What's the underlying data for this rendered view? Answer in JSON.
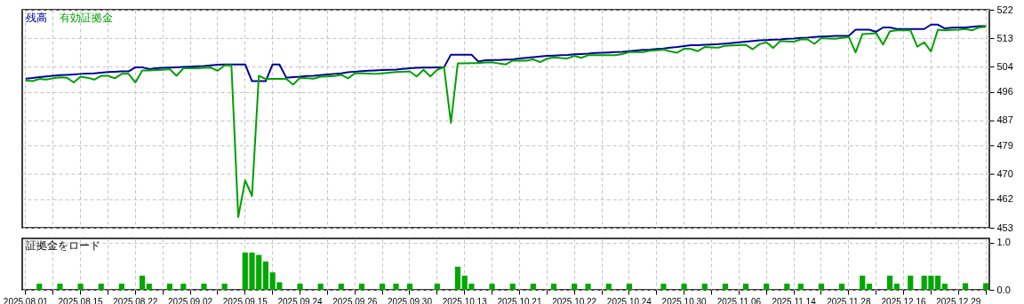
{
  "chart_data": [
    {
      "type": "line",
      "legend": "top left",
      "grid": true,
      "tick_labels": "y",
      "categories": [
        "2025.08.01",
        null,
        null,
        null,
        null,
        null,
        null,
        null,
        "2025.08.15",
        null,
        null,
        null,
        null,
        null,
        null,
        null,
        "2025.08.22",
        null,
        null,
        null,
        null,
        null,
        null,
        null,
        "2025.09.02",
        null,
        null,
        null,
        null,
        null,
        null,
        null,
        "2025.09.15",
        null,
        null,
        null,
        null,
        null,
        null,
        null,
        "2025.09.24",
        null,
        null,
        null,
        null,
        null,
        null,
        null,
        "2025.09.26",
        null,
        null,
        null,
        null,
        null,
        null,
        null,
        "2025.09.30",
        null,
        null,
        null,
        null,
        null,
        null,
        null,
        "2025.10.13",
        null,
        null,
        null,
        null,
        null,
        null,
        null,
        "2025.10.21",
        null,
        null,
        null,
        null,
        null,
        null,
        null,
        "2025.10.22",
        null,
        null,
        null,
        null,
        null,
        null,
        null,
        "2025.10.24",
        null,
        null,
        null,
        null,
        null,
        null,
        null,
        "2025.10.30",
        null,
        null,
        null,
        null,
        null,
        null,
        null,
        "2025.11.06",
        null,
        null,
        null,
        null,
        null,
        null,
        null,
        "2025.11.14",
        null,
        null,
        null,
        null,
        null,
        null,
        null,
        "2025.11.28",
        null,
        null,
        null,
        null,
        null,
        null,
        null,
        "2025.12.16",
        null,
        null,
        null,
        null,
        null,
        null,
        null,
        "2025.12.29",
        null,
        null,
        null,
        null
      ],
      "ylim": [
        453,
        522
      ],
      "yticks": [
        453,
        462,
        470,
        479,
        487,
        496,
        504,
        513,
        522
      ],
      "series": [
        {
          "name": "残高",
          "color": "#00009c",
          "values": [
            500.2,
            500.4,
            500.7,
            500.9,
            501.1,
            501.3,
            501.4,
            501.5,
            501.7,
            501.8,
            501.9,
            502.1,
            502.3,
            502.4,
            502.5,
            502.5,
            503.8,
            503.8,
            503.2,
            503.5,
            503.6,
            503.7,
            503.8,
            503.9,
            504.0,
            504.1,
            504.2,
            504.4,
            504.6,
            504.7,
            504.7,
            504.7,
            504.7,
            499.4,
            499.4,
            499.4,
            504.7,
            504.7,
            500.5,
            500.7,
            500.8,
            501.0,
            501.1,
            501.3,
            501.5,
            501.7,
            501.9,
            502.2,
            502.4,
            502.6,
            502.7,
            502.8,
            502.9,
            503.0,
            503.1,
            503.3,
            503.5,
            503.6,
            503.7,
            503.7,
            503.8,
            503.8,
            507.8,
            507.8,
            507.8,
            507.8,
            505.6,
            506.0,
            506.1,
            506.1,
            506.2,
            506.3,
            506.6,
            506.8,
            507.0,
            507.2,
            507.4,
            507.5,
            507.6,
            507.7,
            507.9,
            508.0,
            508.1,
            508.3,
            508.4,
            508.5,
            508.6,
            508.7,
            508.9,
            509.1,
            509.3,
            509.4,
            509.6,
            509.7,
            510.0,
            510.2,
            510.5,
            510.8,
            510.8,
            510.9,
            511.0,
            511.1,
            511.3,
            511.5,
            511.7,
            511.9,
            512.1,
            512.3,
            512.4,
            512.5,
            512.6,
            512.8,
            512.9,
            513.1,
            513.2,
            513.4,
            513.5,
            513.6,
            513.7,
            513.7,
            513.7,
            515.7,
            515.7,
            515.7,
            515.0,
            516.4,
            516.4,
            515.9,
            515.9,
            515.9,
            515.9,
            515.9,
            517.3,
            517.3,
            516.1,
            516.3,
            516.4,
            516.4,
            516.6,
            516.8,
            516.8
          ]
        },
        {
          "name": "有効証拠金",
          "color": "#00a000",
          "values": [
            499.6,
            499.4,
            500.1,
            499.9,
            500.3,
            500.6,
            500.5,
            499.0,
            500.8,
            500.5,
            499.9,
            501.1,
            501.1,
            500.3,
            501.7,
            501.7,
            499.0,
            502.8,
            502.8,
            502.9,
            503.0,
            503.2,
            501.1,
            503.5,
            503.5,
            503.5,
            503.6,
            503.7,
            502.7,
            504.4,
            504.4,
            456.4,
            468.0,
            463.1,
            501.1,
            500.1,
            500.1,
            500.1,
            500.1,
            498.3,
            500.5,
            500.3,
            500.2,
            500.8,
            500.9,
            501.0,
            501.4,
            500.3,
            501.9,
            501.9,
            501.8,
            501.7,
            501.9,
            502.1,
            502.3,
            502.4,
            502.5,
            500.9,
            503.0,
            500.9,
            503.0,
            503.8,
            486.2,
            505.0,
            505.0,
            505.1,
            505.1,
            505.3,
            505.4,
            505.0,
            504.7,
            505.9,
            505.9,
            505.9,
            506.3,
            505.4,
            506.5,
            506.9,
            506.7,
            506.6,
            507.4,
            506.8,
            507.6,
            507.6,
            507.6,
            507.6,
            507.6,
            508.0,
            508.6,
            508.6,
            508.6,
            509.0,
            509.2,
            509.4,
            508.8,
            508.4,
            509.7,
            509.6,
            508.9,
            510.2,
            510.1,
            510.0,
            510.6,
            510.7,
            510.8,
            510.9,
            509.5,
            511.1,
            511.7,
            509.9,
            512.1,
            512.0,
            511.9,
            512.6,
            512.6,
            511.2,
            513.0,
            512.9,
            512.8,
            513.1,
            513.4,
            508.5,
            514.3,
            514.4,
            514.6,
            511.0,
            515.2,
            515.5,
            515.5,
            515.5,
            510.3,
            511.7,
            508.8,
            515.7,
            515.5,
            515.6,
            515.7,
            515.9,
            515.5,
            516.4,
            516.6
          ]
        }
      ]
    },
    {
      "type": "bar",
      "title": "証拠金をロード",
      "grid": true,
      "color": "#00a800",
      "categories": [
        "2025.08.01",
        null,
        null,
        null,
        null,
        null,
        null,
        null,
        "2025.08.15",
        null,
        null,
        null,
        null,
        null,
        null,
        null,
        "2025.08.22",
        null,
        null,
        null,
        null,
        null,
        null,
        null,
        "2025.09.02",
        null,
        null,
        null,
        null,
        null,
        null,
        null,
        "2025.09.15",
        null,
        null,
        null,
        null,
        null,
        null,
        null,
        "2025.09.24",
        null,
        null,
        null,
        null,
        null,
        null,
        null,
        "2025.09.26",
        null,
        null,
        null,
        null,
        null,
        null,
        null,
        "2025.09.30",
        null,
        null,
        null,
        null,
        null,
        null,
        null,
        "2025.10.13",
        null,
        null,
        null,
        null,
        null,
        null,
        null,
        "2025.10.21",
        null,
        null,
        null,
        null,
        null,
        null,
        null,
        "2025.10.22",
        null,
        null,
        null,
        null,
        null,
        null,
        null,
        "2025.10.24",
        null,
        null,
        null,
        null,
        null,
        null,
        null,
        "2025.10.30",
        null,
        null,
        null,
        null,
        null,
        null,
        null,
        "2025.11.06",
        null,
        null,
        null,
        null,
        null,
        null,
        null,
        "2025.11.14",
        null,
        null,
        null,
        null,
        null,
        null,
        null,
        "2025.11.28",
        null,
        null,
        null,
        null,
        null,
        null,
        null,
        "2025.12.16",
        null,
        null,
        null,
        null,
        null,
        null,
        null,
        "2025.12.29",
        null,
        null,
        null,
        null
      ],
      "ylim": [
        0,
        1.09
      ],
      "yticks": [
        {
          "value": 0,
          "label": "0.0"
        },
        {
          "value": 1,
          "label": "1.0"
        }
      ],
      "values": [
        null,
        null,
        0.13,
        null,
        null,
        0.13,
        null,
        null,
        0.13,
        null,
        null,
        0.13,
        null,
        null,
        0.13,
        null,
        null,
        0.3,
        0.13,
        null,
        null,
        0.13,
        null,
        0.13,
        null,
        null,
        0.13,
        null,
        null,
        0.13,
        null,
        null,
        0.79,
        0.79,
        0.74,
        0.6,
        0.37,
        0.16,
        null,
        null,
        0.13,
        null,
        null,
        0.13,
        null,
        null,
        0.13,
        null,
        null,
        0.13,
        null,
        null,
        0.13,
        null,
        0.13,
        null,
        0.13,
        null,
        null,
        null,
        0.13,
        null,
        null,
        0.49,
        0.3,
        0.13,
        null,
        null,
        0.13,
        null,
        null,
        0.13,
        null,
        null,
        0.13,
        null,
        null,
        0.13,
        null,
        null,
        0.13,
        null,
        0.13,
        null,
        null,
        0.13,
        null,
        null,
        0.13,
        null,
        null,
        null,
        null,
        0.13,
        null,
        null,
        0.13,
        null,
        null,
        0.13,
        null,
        null,
        0.13,
        null,
        null,
        0.13,
        null,
        null,
        0.13,
        null,
        null,
        0.13,
        null,
        0.13,
        null,
        null,
        0.13,
        null,
        null,
        0.13,
        null,
        null,
        0.3,
        0.13,
        null,
        null,
        0.3,
        0.13,
        null,
        0.3,
        null,
        0.3,
        0.3,
        0.3,
        0.13,
        null,
        null,
        0.14,
        null,
        null,
        0.14
      ]
    }
  ]
}
